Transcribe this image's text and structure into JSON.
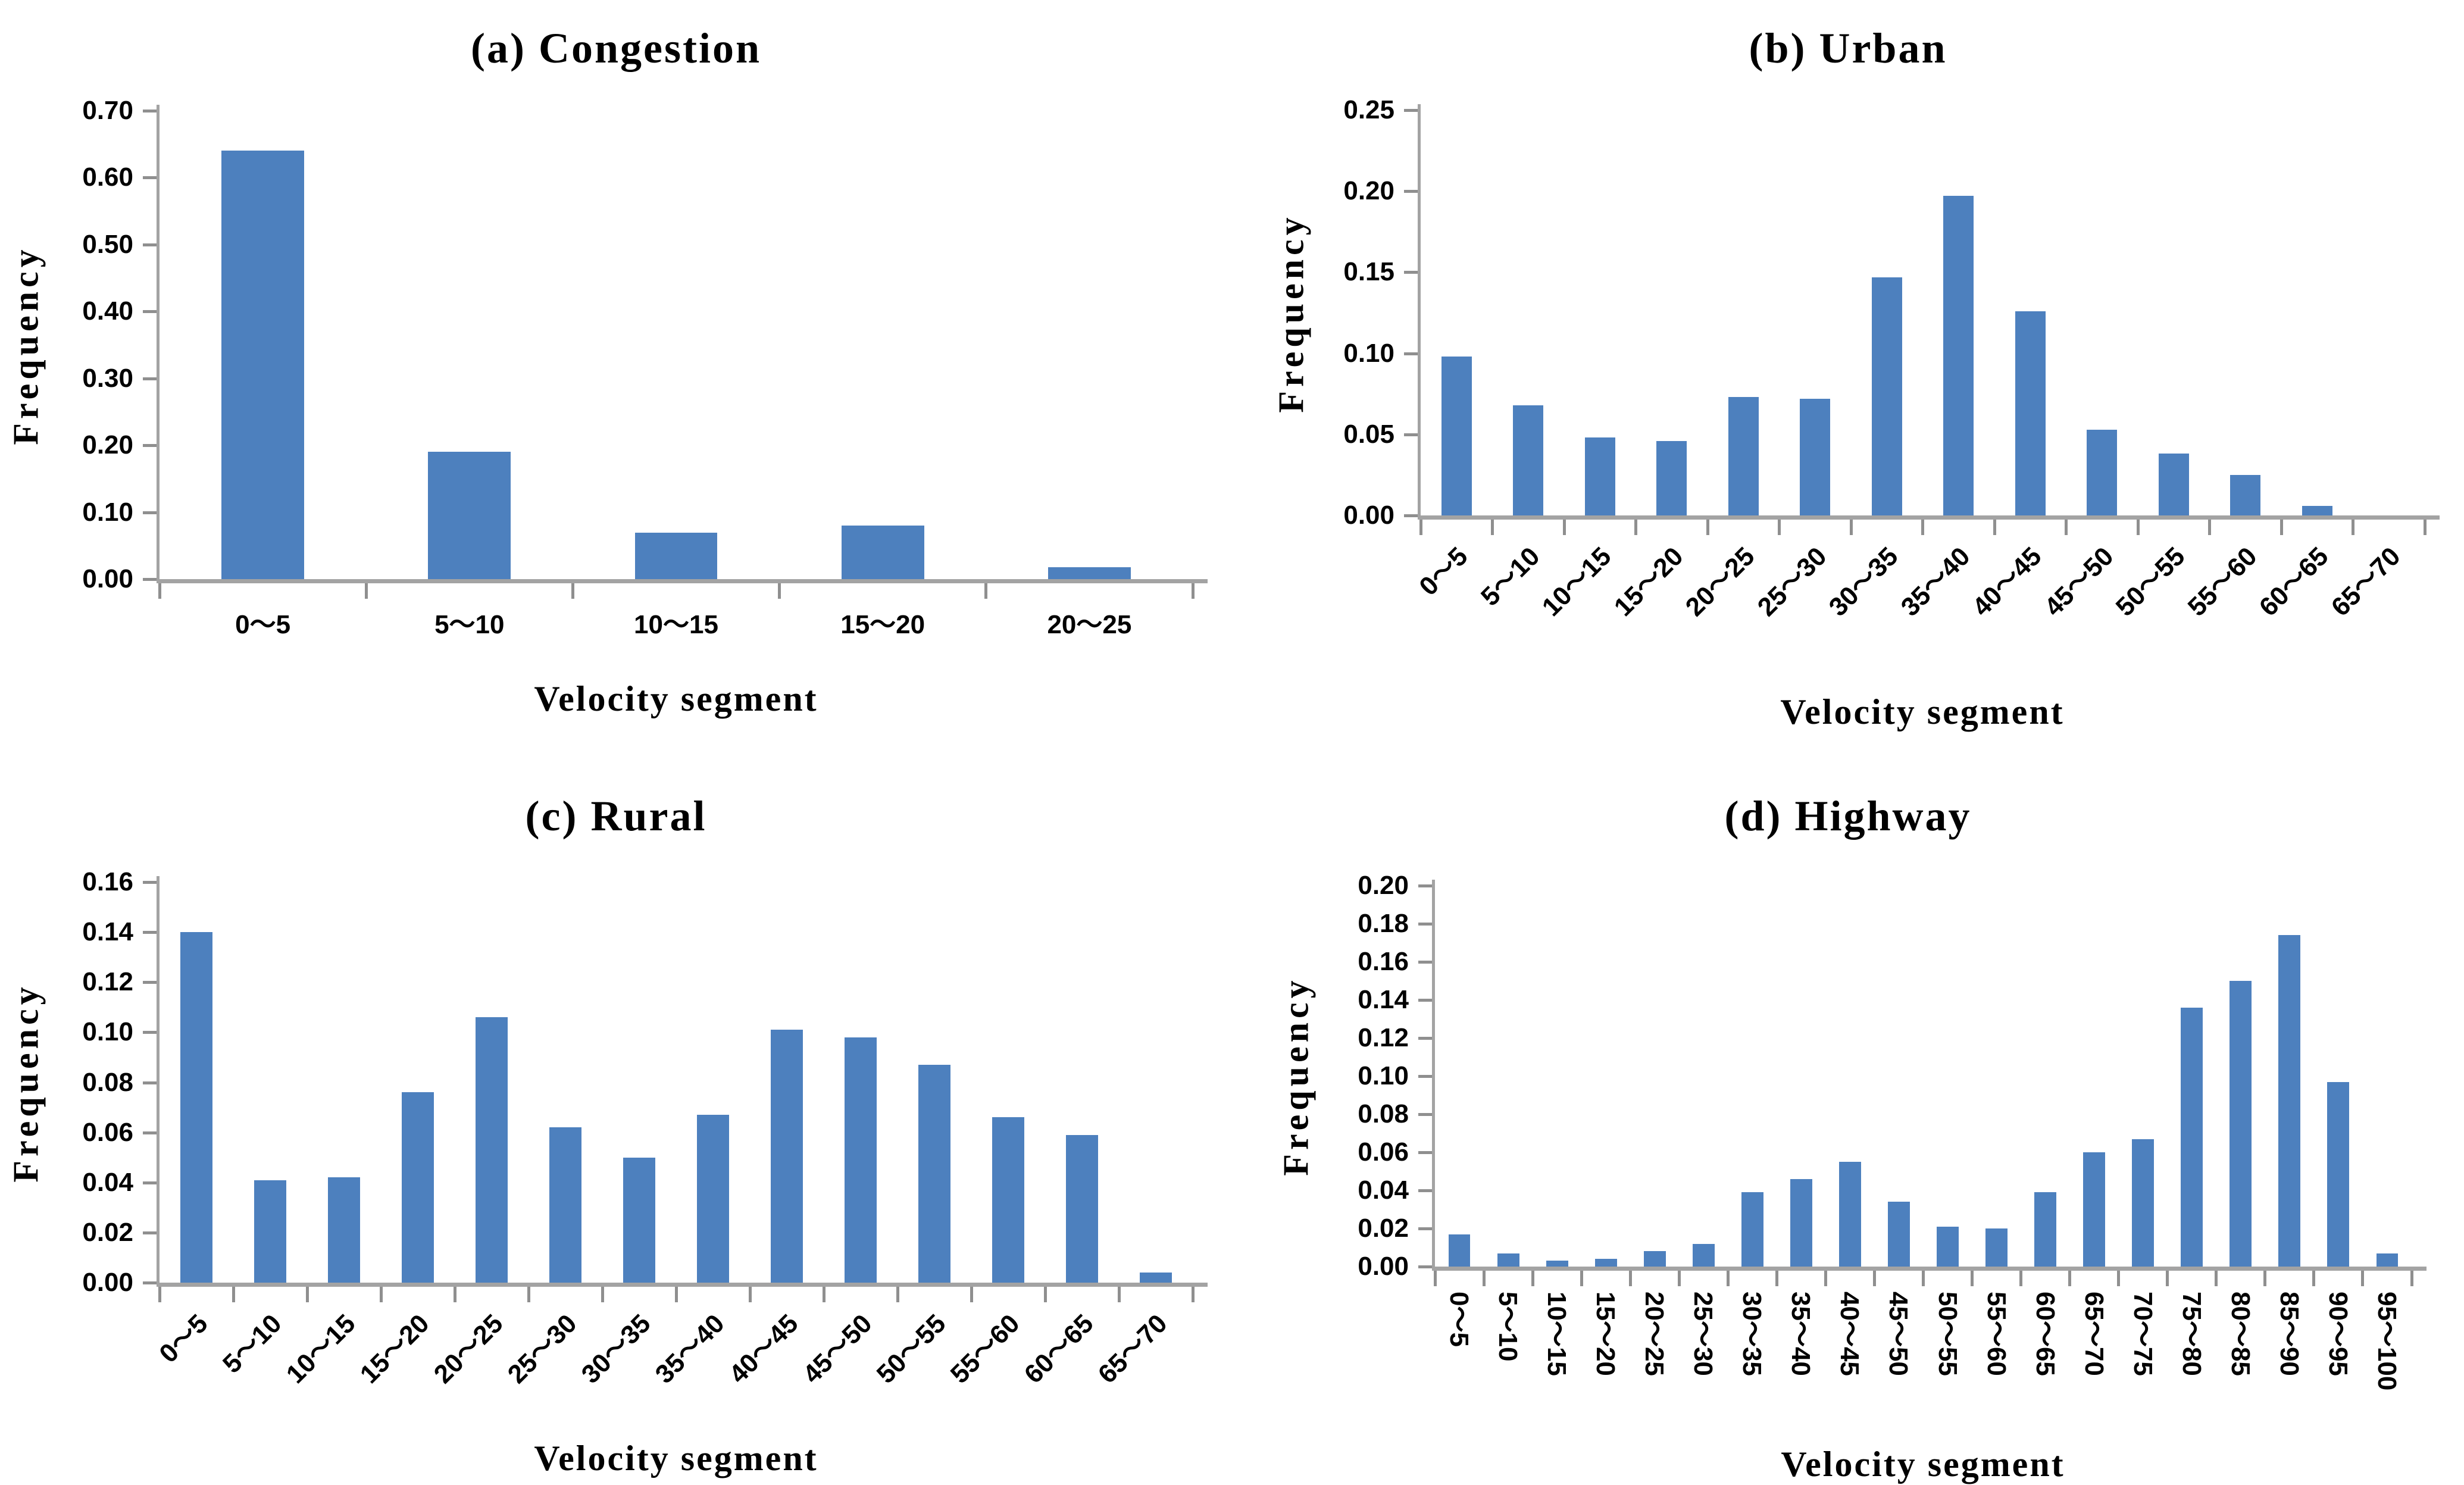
{
  "chart_data": [
    {
      "id": "a",
      "type": "bar",
      "title": "(a) Congestion",
      "xlabel": "Velocity segment",
      "ylabel": "Frequency",
      "categories": [
        "0～5",
        "5～10",
        "10～15",
        "15～20",
        "20～25"
      ],
      "values": [
        0.64,
        0.19,
        0.069,
        0.08,
        0.018
      ],
      "ylim": [
        0,
        0.7
      ],
      "yticks": [
        "0.00",
        "0.10",
        "0.20",
        "0.30",
        "0.40",
        "0.50",
        "0.60",
        "0.70"
      ],
      "grid": false,
      "legend": null,
      "bar_color": "#4d80be",
      "axis_color": "#a3a3a3",
      "tick_color": "#8f8f8f"
    },
    {
      "id": "b",
      "type": "bar",
      "title": "(b) Urban",
      "xlabel": "Velocity segment",
      "ylabel": "Frequency",
      "categories": [
        "0～5",
        "5～10",
        "10～15",
        "15～20",
        "20～25",
        "25～30",
        "30～35",
        "35～40",
        "40～45",
        "45～50",
        "50～55",
        "55～60",
        "60～65",
        "65～70"
      ],
      "values": [
        0.098,
        0.068,
        0.048,
        0.046,
        0.073,
        0.072,
        0.147,
        0.197,
        0.126,
        0.053,
        0.038,
        0.025,
        0.006,
        0
      ],
      "ylim": [
        0,
        0.25
      ],
      "yticks": [
        "0.00",
        "0.05",
        "0.10",
        "0.15",
        "0.20",
        "0.25"
      ],
      "grid": false,
      "legend": null,
      "bar_color": "#4d80be",
      "axis_color": "#a3a3a3",
      "tick_color": "#8f8f8f"
    },
    {
      "id": "c",
      "type": "bar",
      "title": "(c) Rural",
      "xlabel": "Velocity segment",
      "ylabel": "Frequency",
      "categories": [
        "0～5",
        "5～10",
        "10～15",
        "15～20",
        "20～25",
        "25～30",
        "30～35",
        "35～40",
        "40～45",
        "45～50",
        "50～55",
        "55～60",
        "60～65",
        "65～70"
      ],
      "values": [
        0.14,
        0.041,
        0.042,
        0.076,
        0.106,
        0.062,
        0.05,
        0.067,
        0.101,
        0.098,
        0.087,
        0.066,
        0.059,
        0.004
      ],
      "ylim": [
        0,
        0.16
      ],
      "yticks": [
        "0.00",
        "0.02",
        "0.04",
        "0.06",
        "0.08",
        "0.10",
        "0.12",
        "0.14",
        "0.16"
      ],
      "grid": false,
      "legend": null,
      "bar_color": "#4d80be",
      "axis_color": "#a3a3a3",
      "tick_color": "#8f8f8f"
    },
    {
      "id": "d",
      "type": "bar",
      "title": "(d) Highway",
      "xlabel": "Velocity segment",
      "ylabel": "Frequency",
      "categories": [
        "0～5",
        "5～10",
        "10～15",
        "15～20",
        "20～25",
        "25～30",
        "30～35",
        "35～40",
        "40～45",
        "45～50",
        "50～55",
        "55～60",
        "60～65",
        "65～70",
        "70～75",
        "75～80",
        "80～85",
        "85～90",
        "90～95",
        "95～100"
      ],
      "values": [
        0.017,
        0.007,
        0.003,
        0.004,
        0.008,
        0.012,
        0.039,
        0.046,
        0.055,
        0.034,
        0.021,
        0.02,
        0.039,
        0.06,
        0.067,
        0.136,
        0.15,
        0.174,
        0.097,
        0.007
      ],
      "ylim": [
        0,
        0.2
      ],
      "yticks": [
        "0.00",
        "0.02",
        "0.04",
        "0.06",
        "0.08",
        "0.10",
        "0.12",
        "0.14",
        "0.16",
        "0.18",
        "0.20"
      ],
      "grid": false,
      "legend": null,
      "bar_color": "#4d80be",
      "axis_color": "#a3a3a3",
      "tick_color": "#8f8f8f"
    }
  ]
}
